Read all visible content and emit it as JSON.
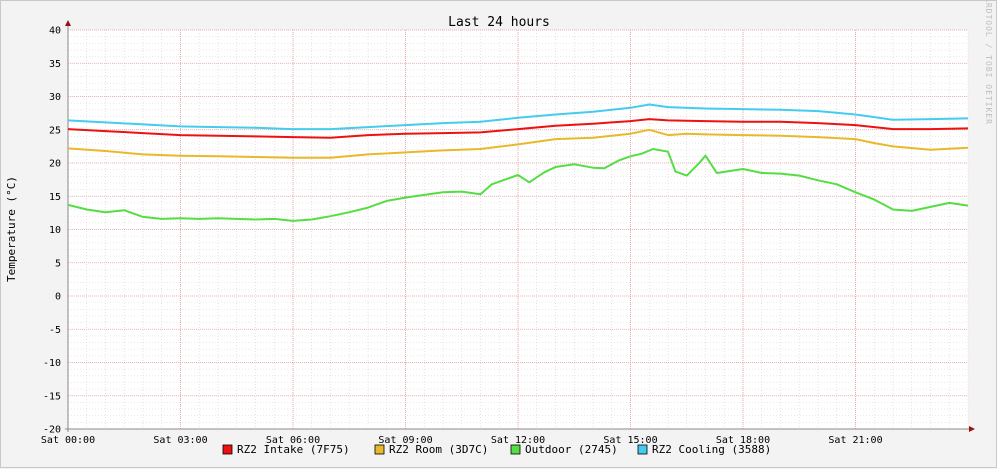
{
  "chart_data": {
    "type": "line",
    "title": "Last 24 hours",
    "ylabel": "Temperature (°C)",
    "watermark": "RRDTOOL / TOBI OETIKER",
    "xlim": [
      0,
      24
    ],
    "ylim": [
      -20,
      40
    ],
    "yticks": [
      40,
      35,
      30,
      25,
      20,
      15,
      10,
      5,
      0,
      -5,
      -10,
      -15,
      -20
    ],
    "xticks": [
      {
        "x": 0,
        "label": "Sat 00:00"
      },
      {
        "x": 3,
        "label": "Sat 03:00"
      },
      {
        "x": 6,
        "label": "Sat 06:00"
      },
      {
        "x": 9,
        "label": "Sat 09:00"
      },
      {
        "x": 12,
        "label": "Sat 12:00"
      },
      {
        "x": 15,
        "label": "Sat 15:00"
      },
      {
        "x": 18,
        "label": "Sat 18:00"
      },
      {
        "x": 21,
        "label": "Sat 21:00"
      }
    ],
    "grid": true,
    "legend_position": "bottom",
    "series": [
      {
        "name": "RZ2 Intake (7F75)",
        "color": "#ee1111",
        "points": [
          [
            0,
            25.1
          ],
          [
            1,
            24.8
          ],
          [
            2,
            24.5
          ],
          [
            3,
            24.2
          ],
          [
            4,
            24.1
          ],
          [
            5,
            24.0
          ],
          [
            6,
            23.9
          ],
          [
            7,
            23.8
          ],
          [
            8,
            24.2
          ],
          [
            9,
            24.4
          ],
          [
            10,
            24.5
          ],
          [
            11,
            24.6
          ],
          [
            12,
            25.1
          ],
          [
            13,
            25.6
          ],
          [
            14,
            25.9
          ],
          [
            14.5,
            26.1
          ],
          [
            15,
            26.3
          ],
          [
            15.5,
            26.6
          ],
          [
            16,
            26.4
          ],
          [
            17,
            26.3
          ],
          [
            18,
            26.2
          ],
          [
            19,
            26.2
          ],
          [
            20,
            26.0
          ],
          [
            21,
            25.7
          ],
          [
            21.5,
            25.4
          ],
          [
            22,
            25.1
          ],
          [
            23,
            25.1
          ],
          [
            24,
            25.2
          ]
        ]
      },
      {
        "name": "RZ2 Room (3D7C)",
        "color": "#e8b92a",
        "points": [
          [
            0,
            22.2
          ],
          [
            1,
            21.8
          ],
          [
            2,
            21.3
          ],
          [
            3,
            21.1
          ],
          [
            4,
            21.0
          ],
          [
            5,
            20.9
          ],
          [
            6,
            20.8
          ],
          [
            7,
            20.8
          ],
          [
            8,
            21.3
          ],
          [
            9,
            21.6
          ],
          [
            10,
            21.9
          ],
          [
            11,
            22.1
          ],
          [
            12,
            22.8
          ],
          [
            13,
            23.6
          ],
          [
            14,
            23.8
          ],
          [
            15,
            24.4
          ],
          [
            15.5,
            25.0
          ],
          [
            16,
            24.2
          ],
          [
            16.5,
            24.4
          ],
          [
            17,
            24.3
          ],
          [
            18,
            24.2
          ],
          [
            19,
            24.1
          ],
          [
            20,
            23.9
          ],
          [
            21,
            23.6
          ],
          [
            21.5,
            23.0
          ],
          [
            22,
            22.5
          ],
          [
            23,
            22.0
          ],
          [
            24,
            22.3
          ]
        ]
      },
      {
        "name": "Outdoor (2745)",
        "color": "#55dd44",
        "points": [
          [
            0,
            13.7
          ],
          [
            0.5,
            13.0
          ],
          [
            1,
            12.6
          ],
          [
            1.5,
            12.9
          ],
          [
            2,
            11.9
          ],
          [
            2.5,
            11.6
          ],
          [
            3,
            11.7
          ],
          [
            3.5,
            11.6
          ],
          [
            4,
            11.7
          ],
          [
            5,
            11.5
          ],
          [
            5.5,
            11.6
          ],
          [
            6,
            11.3
          ],
          [
            6.5,
            11.5
          ],
          [
            7,
            12.0
          ],
          [
            7.5,
            12.6
          ],
          [
            8,
            13.3
          ],
          [
            8.5,
            14.3
          ],
          [
            9,
            14.8
          ],
          [
            9.5,
            15.2
          ],
          [
            10,
            15.6
          ],
          [
            10.5,
            15.7
          ],
          [
            11,
            15.3
          ],
          [
            11.3,
            16.8
          ],
          [
            12,
            18.2
          ],
          [
            12.3,
            17.1
          ],
          [
            12.7,
            18.6
          ],
          [
            13,
            19.4
          ],
          [
            13.5,
            19.8
          ],
          [
            14,
            19.3
          ],
          [
            14.3,
            19.2
          ],
          [
            14.7,
            20.4
          ],
          [
            15,
            21.0
          ],
          [
            15.3,
            21.4
          ],
          [
            15.6,
            22.1
          ],
          [
            16,
            21.7
          ],
          [
            16.2,
            18.7
          ],
          [
            16.5,
            18.1
          ],
          [
            16.8,
            19.8
          ],
          [
            17,
            21.1
          ],
          [
            17.3,
            18.5
          ],
          [
            18,
            19.1
          ],
          [
            18.5,
            18.5
          ],
          [
            19,
            18.4
          ],
          [
            19.5,
            18.1
          ],
          [
            20,
            17.4
          ],
          [
            20.5,
            16.8
          ],
          [
            21,
            15.6
          ],
          [
            21.5,
            14.5
          ],
          [
            22,
            13.0
          ],
          [
            22.5,
            12.8
          ],
          [
            23,
            13.4
          ],
          [
            23.5,
            14.0
          ],
          [
            24,
            13.6
          ]
        ]
      },
      {
        "name": "RZ2 Cooling (3588)",
        "color": "#44ccee",
        "points": [
          [
            0,
            26.4
          ],
          [
            1,
            26.1
          ],
          [
            2,
            25.8
          ],
          [
            3,
            25.5
          ],
          [
            4,
            25.4
          ],
          [
            5,
            25.3
          ],
          [
            6,
            25.1
          ],
          [
            7,
            25.1
          ],
          [
            8,
            25.4
          ],
          [
            9,
            25.7
          ],
          [
            10,
            26.0
          ],
          [
            11,
            26.2
          ],
          [
            12,
            26.8
          ],
          [
            13,
            27.3
          ],
          [
            14,
            27.7
          ],
          [
            14.5,
            28.0
          ],
          [
            15,
            28.3
          ],
          [
            15.5,
            28.8
          ],
          [
            16,
            28.4
          ],
          [
            17,
            28.2
          ],
          [
            18,
            28.1
          ],
          [
            19,
            28.0
          ],
          [
            20,
            27.8
          ],
          [
            21,
            27.3
          ],
          [
            21.5,
            26.9
          ],
          [
            22,
            26.5
          ],
          [
            23,
            26.6
          ],
          [
            24,
            26.7
          ]
        ]
      }
    ]
  }
}
